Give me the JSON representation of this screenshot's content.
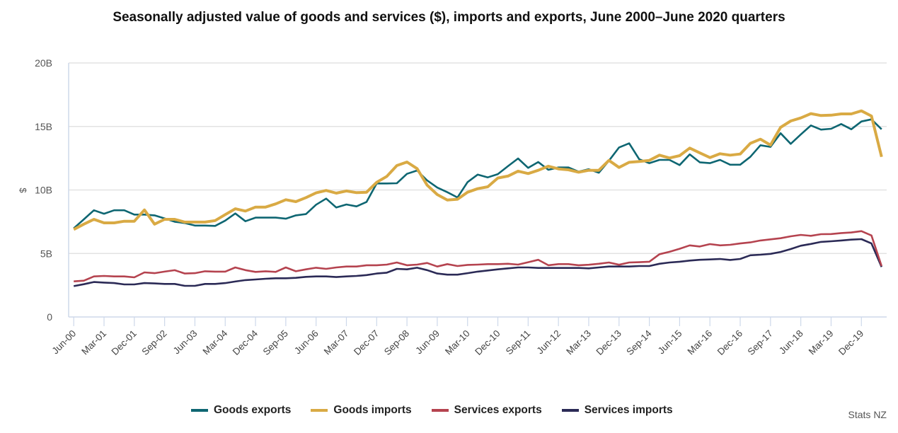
{
  "chart_data": {
    "type": "line",
    "title": "Seasonally adjusted value of goods and services ($), imports and exports, June 2000–June 2020 quarters",
    "xlabel": "",
    "ylabel": "$",
    "ylim": [
      0,
      20
    ],
    "y_unit": "billion NZD",
    "y_ticks": [
      0,
      5,
      10,
      15,
      20
    ],
    "y_tick_labels": [
      "0",
      "5B",
      "10B",
      "15B",
      "20B"
    ],
    "grid": "horizontal",
    "legend_position": "bottom",
    "x_tick_every": 3,
    "x_tick_labels": [
      "Jun-00",
      "Mar-01",
      "Dec-01",
      "Sep-02",
      "Jun-03",
      "Mar-04",
      "Dec-04",
      "Sep-05",
      "Jun-06",
      "Mar-07",
      "Dec-07",
      "Sep-08",
      "Jun-09",
      "Mar-10",
      "Dec-10",
      "Sep-11",
      "Jun-12",
      "Mar-13",
      "Dec-13",
      "Sep-14",
      "Jun-15",
      "Mar-16",
      "Dec-16",
      "Sep-17",
      "Jun-18",
      "Mar-19",
      "Dec-19"
    ],
    "x_count": 81,
    "series": [
      {
        "name": "Goods exports",
        "color": "#0e6672",
        "values": [
          6.98,
          7.69,
          8.4,
          8.13,
          8.4,
          8.4,
          8.06,
          8.06,
          8.0,
          7.76,
          7.5,
          7.39,
          7.2,
          7.2,
          7.17,
          7.59,
          8.15,
          7.54,
          7.82,
          7.82,
          7.82,
          7.74,
          8.0,
          8.1,
          8.84,
          9.32,
          8.62,
          8.86,
          8.71,
          9.06,
          10.51,
          10.51,
          10.53,
          11.27,
          11.53,
          10.75,
          10.19,
          9.82,
          9.41,
          10.62,
          11.21,
          10.99,
          11.25,
          11.87,
          12.48,
          11.74,
          12.2,
          11.59,
          11.77,
          11.77,
          11.44,
          11.63,
          11.36,
          12.3,
          13.35,
          13.67,
          12.42,
          12.11,
          12.37,
          12.37,
          11.96,
          12.8,
          12.18,
          12.11,
          12.37,
          11.99,
          11.99,
          12.61,
          13.52,
          13.39,
          14.47,
          13.63,
          14.37,
          15.08,
          14.75,
          14.82,
          15.19,
          14.78,
          15.39,
          15.56,
          14.78
        ]
      },
      {
        "name": "Goods imports",
        "color": "#d9aa44",
        "values": [
          6.89,
          7.31,
          7.69,
          7.41,
          7.41,
          7.54,
          7.54,
          8.43,
          7.31,
          7.69,
          7.69,
          7.47,
          7.47,
          7.47,
          7.59,
          8.06,
          8.52,
          8.34,
          8.65,
          8.65,
          8.9,
          9.23,
          9.08,
          9.4,
          9.77,
          9.96,
          9.75,
          9.92,
          9.79,
          9.82,
          10.6,
          11.07,
          11.92,
          12.2,
          11.68,
          10.38,
          9.64,
          9.21,
          9.27,
          9.82,
          10.1,
          10.25,
          10.94,
          11.09,
          11.48,
          11.29,
          11.55,
          11.87,
          11.66,
          11.59,
          11.4,
          11.55,
          11.55,
          12.33,
          11.77,
          12.18,
          12.24,
          12.33,
          12.74,
          12.52,
          12.7,
          13.3,
          12.92,
          12.55,
          12.85,
          12.74,
          12.83,
          13.67,
          14.0,
          13.54,
          14.93,
          15.43,
          15.67,
          16.01,
          15.86,
          15.89,
          15.99,
          15.99,
          16.23,
          15.82,
          12.61
        ]
      },
      {
        "name": "Services exports",
        "color": "#b5434f",
        "values": [
          2.8,
          2.86,
          3.19,
          3.23,
          3.19,
          3.19,
          3.12,
          3.51,
          3.45,
          3.57,
          3.68,
          3.42,
          3.45,
          3.6,
          3.57,
          3.57,
          3.9,
          3.69,
          3.55,
          3.6,
          3.55,
          3.9,
          3.6,
          3.75,
          3.88,
          3.79,
          3.9,
          3.97,
          3.97,
          4.07,
          4.07,
          4.12,
          4.29,
          4.07,
          4.12,
          4.25,
          3.97,
          4.16,
          4.01,
          4.1,
          4.12,
          4.16,
          4.16,
          4.19,
          4.12,
          4.31,
          4.5,
          4.07,
          4.16,
          4.16,
          4.07,
          4.11,
          4.19,
          4.29,
          4.11,
          4.29,
          4.31,
          4.35,
          4.94,
          5.13,
          5.37,
          5.64,
          5.55,
          5.74,
          5.64,
          5.68,
          5.79,
          5.87,
          6.02,
          6.11,
          6.2,
          6.35,
          6.46,
          6.39,
          6.52,
          6.53,
          6.61,
          6.65,
          6.76,
          6.42,
          4.01
        ]
      },
      {
        "name": "Services imports",
        "color": "#2b2a56",
        "values": [
          2.43,
          2.58,
          2.75,
          2.71,
          2.67,
          2.56,
          2.56,
          2.67,
          2.64,
          2.6,
          2.6,
          2.45,
          2.45,
          2.6,
          2.6,
          2.67,
          2.79,
          2.9,
          2.95,
          3.01,
          3.05,
          3.05,
          3.08,
          3.16,
          3.19,
          3.19,
          3.14,
          3.19,
          3.23,
          3.3,
          3.42,
          3.49,
          3.79,
          3.75,
          3.88,
          3.69,
          3.42,
          3.33,
          3.33,
          3.45,
          3.57,
          3.66,
          3.75,
          3.83,
          3.9,
          3.9,
          3.86,
          3.86,
          3.86,
          3.86,
          3.86,
          3.83,
          3.9,
          3.97,
          3.97,
          3.97,
          4.01,
          4.01,
          4.19,
          4.29,
          4.35,
          4.44,
          4.5,
          4.53,
          4.57,
          4.49,
          4.57,
          4.86,
          4.9,
          4.97,
          5.12,
          5.35,
          5.61,
          5.75,
          5.91,
          5.96,
          6.02,
          6.09,
          6.13,
          5.79,
          3.94
        ]
      }
    ]
  },
  "source": "Stats NZ"
}
